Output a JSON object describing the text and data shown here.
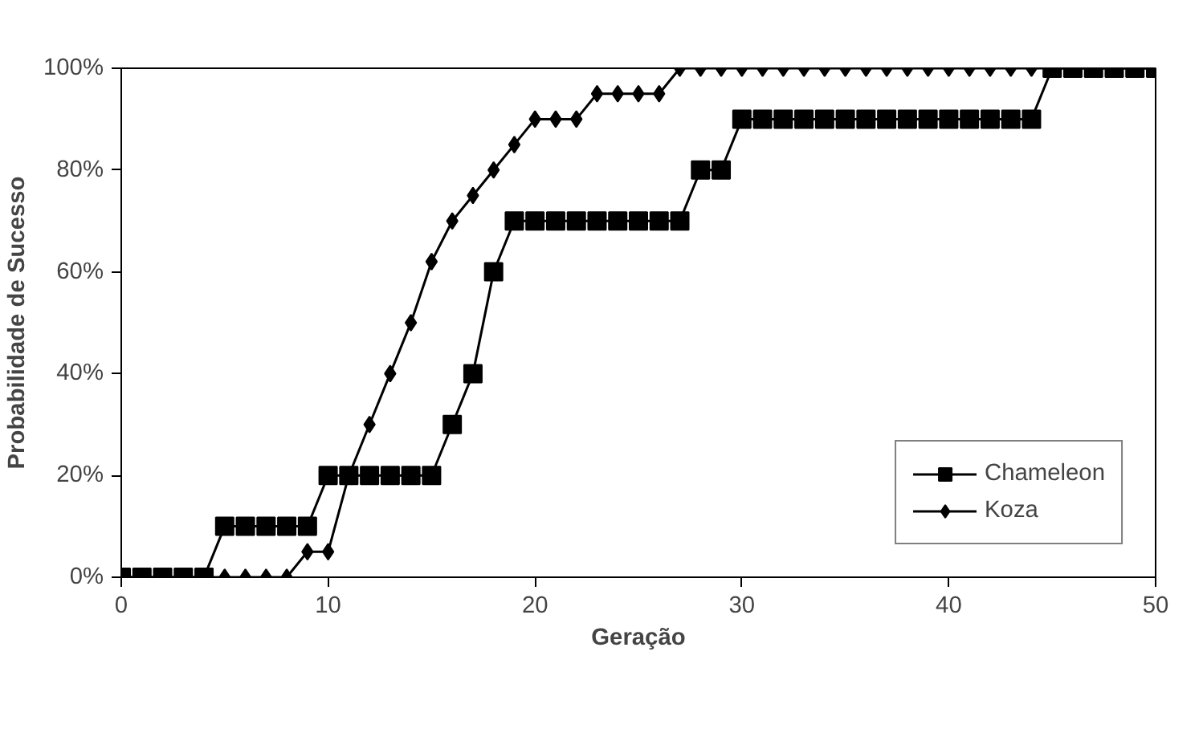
{
  "chart_data": {
    "type": "line",
    "xlabel": "Geração",
    "ylabel": "Probabilidade de Sucesso",
    "x": [
      0,
      1,
      2,
      3,
      4,
      5,
      6,
      7,
      8,
      9,
      10,
      11,
      12,
      13,
      14,
      15,
      16,
      17,
      18,
      19,
      20,
      21,
      22,
      23,
      24,
      25,
      26,
      27,
      28,
      29,
      30,
      31,
      32,
      33,
      34,
      35,
      36,
      37,
      38,
      39,
      40,
      41,
      42,
      43,
      44,
      45,
      46,
      47,
      48,
      49,
      50
    ],
    "series": [
      {
        "name": "Chameleon",
        "color": "#000000",
        "marker": "square",
        "values": [
          0,
          0,
          0,
          0,
          0,
          10,
          10,
          10,
          10,
          10,
          20,
          20,
          20,
          20,
          20,
          20,
          30,
          40,
          60,
          70,
          70,
          70,
          70,
          70,
          70,
          70,
          70,
          70,
          80,
          80,
          90,
          90,
          90,
          90,
          90,
          90,
          90,
          90,
          90,
          90,
          90,
          90,
          90,
          90,
          90,
          100,
          100,
          100,
          100,
          100,
          100
        ]
      },
      {
        "name": "Koza",
        "color": "#000000",
        "marker": "diamond",
        "values": [
          0,
          0,
          0,
          0,
          0,
          0,
          0,
          0,
          0,
          5,
          5,
          20,
          30,
          40,
          50,
          62,
          70,
          75,
          80,
          85,
          90,
          90,
          90,
          95,
          95,
          95,
          95,
          100,
          100,
          100,
          100,
          100,
          100,
          100,
          100,
          100,
          100,
          100,
          100,
          100,
          100,
          100,
          100,
          100,
          100,
          100,
          100,
          100,
          100,
          100,
          100
        ]
      }
    ],
    "xlim": [
      0,
      50
    ],
    "xticks": [
      0,
      10,
      20,
      30,
      40,
      50
    ],
    "ylim": [
      0,
      100
    ],
    "yticks": [
      {
        "value": 0,
        "label": "0%"
      },
      {
        "value": 20,
        "label": "20%"
      },
      {
        "value": 40,
        "label": "40%"
      },
      {
        "value": 60,
        "label": "60%"
      },
      {
        "value": 80,
        "label": "80%"
      },
      {
        "value": 100,
        "label": "100%"
      }
    ],
    "grid": false,
    "legend": "bottom right"
  }
}
